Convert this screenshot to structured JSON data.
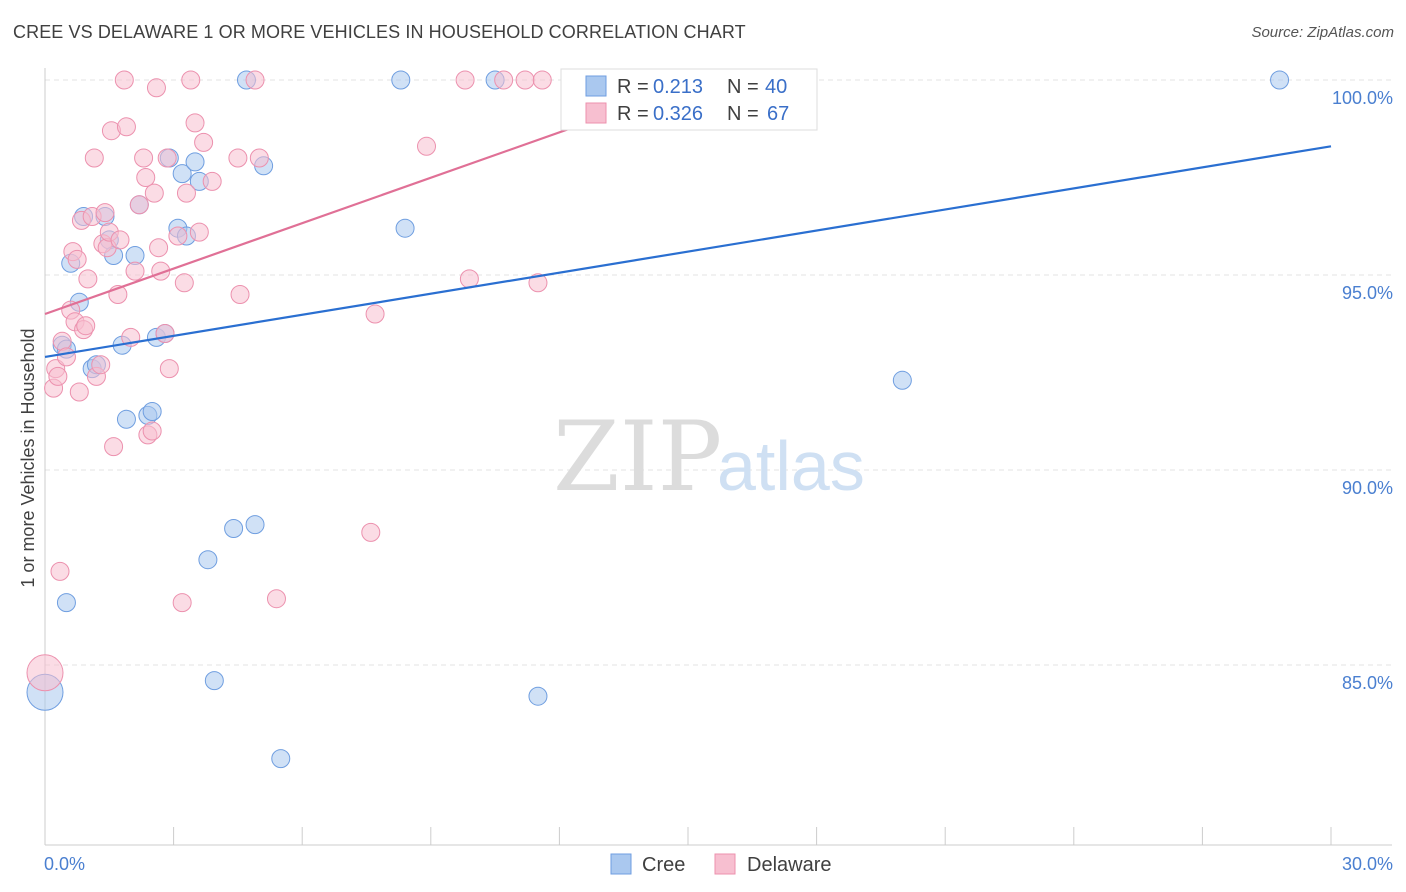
{
  "title": "CREE VS DELAWARE 1 OR MORE VEHICLES IN HOUSEHOLD CORRELATION CHART",
  "source": "Source: ZipAtlas.com",
  "watermark": {
    "zip": "ZIP",
    "atlas": "atlas"
  },
  "colors": {
    "cree_fill": "#aac8ef",
    "cree_stroke": "#6f9ee0",
    "cree_line": "#2a6fd1",
    "delaware_fill": "#f7bfd0",
    "delaware_stroke": "#ec91ae",
    "delaware_line": "#e07096",
    "tick_label": "#4a7fd0",
    "grid": "#e3e3e3"
  },
  "legend": {
    "rows": [
      {
        "r_label": "R =",
        "r_value": "0.213",
        "n_label": "N =",
        "n_value": "40"
      },
      {
        "r_label": "R =",
        "r_value": "0.326",
        "n_label": "N =",
        "n_value": "67"
      }
    ]
  },
  "chart_data": {
    "type": "scatter",
    "title": "CREE VS DELAWARE 1 OR MORE VEHICLES IN HOUSEHOLD CORRELATION CHART",
    "xlabel": "",
    "ylabel": "1 or more Vehicles in Household",
    "xlim": [
      0,
      30
    ],
    "ylim": [
      80.5,
      100.5
    ],
    "x_tick_labels": [
      "0.0%",
      "30.0%"
    ],
    "y_ticks": [
      85,
      90,
      95,
      100
    ],
    "y_tick_labels": [
      "85.0%",
      "90.0%",
      "95.0%",
      "100.0%"
    ],
    "grid": true,
    "legend_position": "top-center",
    "series": [
      {
        "name": "Cree",
        "r": 0.213,
        "n": 40,
        "trend": {
          "x": [
            0,
            30
          ],
          "y": [
            92.9,
            98.3
          ]
        },
        "points": [
          [
            0.0,
            84.3
          ],
          [
            0.4,
            93.2
          ],
          [
            0.5,
            86.6
          ],
          [
            0.6,
            95.3
          ],
          [
            0.8,
            94.3
          ],
          [
            0.9,
            96.5
          ],
          [
            1.1,
            92.6
          ],
          [
            1.2,
            92.7
          ],
          [
            1.4,
            96.5
          ],
          [
            1.5,
            95.9
          ],
          [
            1.6,
            95.5
          ],
          [
            1.8,
            93.2
          ],
          [
            1.9,
            91.3
          ],
          [
            2.1,
            95.5
          ],
          [
            2.2,
            96.8
          ],
          [
            2.4,
            91.4
          ],
          [
            2.5,
            91.5
          ],
          [
            2.6,
            93.4
          ],
          [
            2.8,
            93.5
          ],
          [
            2.9,
            98.0
          ],
          [
            3.1,
            96.2
          ],
          [
            3.3,
            96.0
          ],
          [
            3.2,
            97.6
          ],
          [
            3.5,
            97.9
          ],
          [
            3.6,
            97.4
          ],
          [
            3.8,
            87.7
          ],
          [
            3.95,
            84.6
          ],
          [
            4.4,
            88.5
          ],
          [
            4.7,
            100.0
          ],
          [
            4.9,
            88.6
          ],
          [
            5.1,
            97.8
          ],
          [
            5.5,
            82.6
          ],
          [
            8.3,
            100.0
          ],
          [
            8.4,
            96.2
          ],
          [
            10.5,
            100.0
          ],
          [
            11.5,
            84.2
          ],
          [
            12.5,
            100.0
          ],
          [
            20.0,
            92.3
          ],
          [
            28.8,
            100.0
          ],
          [
            0.5,
            93.1
          ]
        ]
      },
      {
        "name": "Delaware",
        "r": 0.326,
        "n": 67,
        "trend": {
          "x": [
            0,
            15.2
          ],
          "y": [
            94.0,
            99.9
          ]
        },
        "points": [
          [
            0.0,
            84.8
          ],
          [
            0.2,
            92.1
          ],
          [
            0.25,
            92.6
          ],
          [
            0.3,
            92.4
          ],
          [
            0.35,
            87.4
          ],
          [
            0.4,
            93.3
          ],
          [
            0.5,
            92.9
          ],
          [
            0.6,
            94.1
          ],
          [
            0.65,
            95.6
          ],
          [
            0.7,
            93.8
          ],
          [
            0.75,
            95.4
          ],
          [
            0.8,
            92.0
          ],
          [
            0.85,
            96.4
          ],
          [
            0.9,
            93.6
          ],
          [
            0.95,
            93.7
          ],
          [
            1.0,
            94.9
          ],
          [
            1.1,
            96.5
          ],
          [
            1.15,
            98.0
          ],
          [
            1.2,
            92.4
          ],
          [
            1.3,
            92.7
          ],
          [
            1.35,
            95.8
          ],
          [
            1.4,
            96.6
          ],
          [
            1.45,
            95.7
          ],
          [
            1.5,
            96.1
          ],
          [
            1.55,
            98.7
          ],
          [
            1.6,
            90.6
          ],
          [
            1.7,
            94.5
          ],
          [
            1.75,
            95.9
          ],
          [
            1.9,
            98.8
          ],
          [
            1.85,
            100.0
          ],
          [
            2.0,
            93.4
          ],
          [
            2.1,
            95.1
          ],
          [
            2.2,
            96.8
          ],
          [
            2.3,
            98.0
          ],
          [
            2.35,
            97.5
          ],
          [
            2.4,
            90.9
          ],
          [
            2.5,
            91.0
          ],
          [
            2.55,
            97.1
          ],
          [
            2.6,
            99.8
          ],
          [
            2.65,
            95.7
          ],
          [
            2.7,
            95.1
          ],
          [
            2.8,
            93.5
          ],
          [
            2.85,
            98.0
          ],
          [
            2.9,
            92.6
          ],
          [
            3.1,
            96.0
          ],
          [
            3.2,
            86.6
          ],
          [
            3.25,
            94.8
          ],
          [
            3.3,
            97.1
          ],
          [
            3.4,
            100.0
          ],
          [
            3.5,
            98.9
          ],
          [
            3.6,
            96.1
          ],
          [
            3.7,
            98.4
          ],
          [
            3.9,
            97.4
          ],
          [
            4.5,
            98.0
          ],
          [
            4.55,
            94.5
          ],
          [
            4.9,
            100.0
          ],
          [
            5.0,
            98.0
          ],
          [
            5.4,
            86.7
          ],
          [
            7.6,
            88.4
          ],
          [
            7.7,
            94.0
          ],
          [
            8.9,
            98.3
          ],
          [
            9.8,
            100.0
          ],
          [
            9.9,
            94.9
          ],
          [
            10.7,
            100.0
          ],
          [
            11.2,
            100.0
          ],
          [
            11.5,
            94.8
          ],
          [
            11.6,
            100.0
          ]
        ]
      }
    ]
  }
}
